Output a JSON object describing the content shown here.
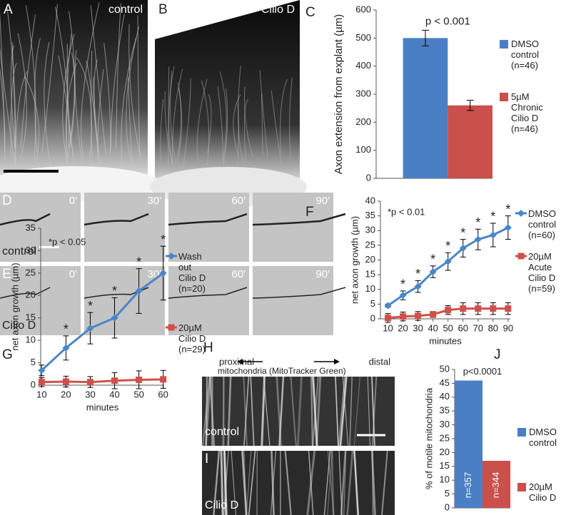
{
  "panels": {
    "A": {
      "label": "A",
      "caption": "control"
    },
    "B": {
      "label": "B",
      "caption": "Cilio D"
    },
    "D": {
      "label": "D",
      "caption": "control",
      "times": [
        "0'",
        "30'",
        "60'",
        "90'"
      ]
    },
    "E": {
      "label": "E",
      "caption": "Cilio D",
      "times": [
        "0'",
        "30'",
        "60'",
        "90'"
      ]
    },
    "H": {
      "label": "H",
      "left": "proximal",
      "right": "distal",
      "subtitle": "mitochondria (MitoTracker Green)",
      "caption": "control"
    },
    "I": {
      "label": "I",
      "caption": "Cilio D"
    }
  },
  "chart_data": [
    {
      "panel_label": "C",
      "type": "bar",
      "ylabel": "Axon extension from explant (µm)",
      "annotation": "p < 0.001",
      "ylim": [
        0,
        600
      ],
      "yticks": [
        0,
        100,
        200,
        300,
        400,
        500,
        600
      ],
      "series": [
        {
          "name": "DMSO\ncontrol\n(n=46)",
          "color": "#4a7fc6",
          "values": [
            500
          ],
          "errors": [
            28
          ]
        },
        {
          "name": "5µM\nChronic\nCilio D\n(n=46)",
          "color": "#c9504b",
          "values": [
            260
          ],
          "errors": [
            18
          ]
        }
      ]
    },
    {
      "panel_label": "F",
      "type": "line",
      "xlabel": "minutes",
      "ylabel": "net axon growth (µm)",
      "annotation": "*p < 0.01",
      "x": [
        10,
        20,
        30,
        40,
        50,
        60,
        70,
        80,
        90
      ],
      "xlim": [
        5,
        91.5
      ],
      "xticks": [
        10,
        20,
        30,
        40,
        50,
        60,
        70,
        80,
        90
      ],
      "ylim": [
        0,
        40
      ],
      "yticks": [
        0,
        5,
        10,
        15,
        20,
        25,
        30,
        35,
        40
      ],
      "significance": {
        "label": "*",
        "x": [
          20,
          30,
          40,
          50,
          60,
          70,
          80,
          90
        ]
      },
      "series": [
        {
          "name": "DMSO\ncontrol\n(n=60)",
          "color": "#4a86c8",
          "marker": "diamond",
          "values": [
            4.5,
            8,
            11,
            16,
            19.5,
            24,
            27,
            28.5,
            31
          ],
          "errors": [
            0.5,
            1.5,
            2,
            2,
            3,
            3,
            3.5,
            4,
            4
          ]
        },
        {
          "name": "20µM\nAcute\nCilio D\n(n=59)",
          "color": "#d0504b",
          "marker": "square",
          "values": [
            0.3,
            0.8,
            1,
            1.5,
            3,
            3.5,
            3.5,
            3.5,
            3.5
          ],
          "errors": [
            1.5,
            1.5,
            1.5,
            1,
            1.5,
            2,
            2,
            2,
            2
          ]
        }
      ]
    },
    {
      "panel_label": "G",
      "type": "line",
      "xlabel": "minutes",
      "ylabel": "net axon growth (µm)",
      "annotation": "*p < 0.05",
      "x": [
        10,
        20,
        30,
        40,
        50,
        60
      ],
      "xlim": [
        9.6,
        60.4
      ],
      "xticks": [
        10,
        20,
        30,
        40,
        50,
        60
      ],
      "ylim": [
        0,
        35
      ],
      "yticks": [
        0,
        5,
        10,
        15,
        20,
        25,
        30,
        35
      ],
      "significance": {
        "label": "*",
        "x": [
          20,
          30,
          40,
          50,
          60
        ]
      },
      "series": [
        {
          "name": "Wash\nout\nCilio D\n(n=20)",
          "color": "#4a86c8",
          "marker": "diamond",
          "values": [
            3.3,
            8.3,
            12.7,
            15,
            21,
            25
          ],
          "errors": [
            1.2,
            2.7,
            3.5,
            4.5,
            5,
            6
          ]
        },
        {
          "name": "20µM\nCilio D\n(n=29)",
          "color": "#d0504b",
          "marker": "square",
          "values": [
            0.7,
            0.8,
            0.7,
            1,
            1.2,
            1.3
          ],
          "errors": [
            1,
            1.2,
            1.2,
            1.8,
            2,
            2
          ]
        }
      ]
    },
    {
      "panel_label": "J",
      "type": "bar",
      "ylabel": "% of motile mitochondria",
      "annotation": "p<0.0001",
      "ylim": [
        0,
        50
      ],
      "yticks": [
        0,
        5,
        10,
        15,
        20,
        25,
        30,
        35,
        40,
        45,
        50
      ],
      "series": [
        {
          "name": "DMSO\ncontrol",
          "color": "#4a7fc6",
          "values": [
            46
          ],
          "bar_label": "n=357"
        },
        {
          "name": "20µM\nCilio D",
          "color": "#c9504b",
          "values": [
            17
          ],
          "bar_label": "n=344"
        }
      ]
    }
  ]
}
